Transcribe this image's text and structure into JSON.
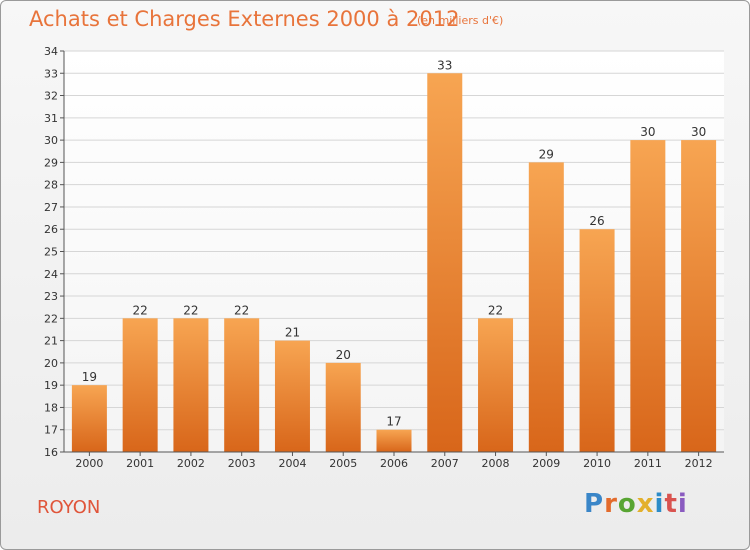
{
  "header": {
    "title": "Achats et Charges Externes 2000 à 2012",
    "subtitle": "(en milliers d'€)"
  },
  "footer": {
    "town": "ROYON",
    "logo": "Proxiti",
    "logo_colors": [
      "#3a86c8",
      "#e36b2c",
      "#58a532",
      "#e3b02c",
      "#2c8cc8",
      "#d9534f",
      "#8a5bc0"
    ]
  },
  "chart_data": {
    "type": "bar",
    "categories": [
      "2000",
      "2001",
      "2002",
      "2003",
      "2004",
      "2005",
      "2006",
      "2007",
      "2008",
      "2009",
      "2010",
      "2011",
      "2012"
    ],
    "values": [
      19,
      22,
      22,
      22,
      21,
      20,
      17,
      33,
      22,
      29,
      26,
      30,
      30
    ],
    "title": "Achats et Charges Externes 2000 à 2012",
    "subtitle": "(en milliers d'€)",
    "xlabel": "",
    "ylabel": "",
    "ylim": [
      16,
      34
    ],
    "yticks": [
      16,
      17,
      18,
      19,
      20,
      21,
      22,
      23,
      24,
      25,
      26,
      27,
      28,
      29,
      30,
      31,
      32,
      33,
      34
    ],
    "grid": true,
    "bar_color": "#f0913e",
    "legend": "none"
  }
}
